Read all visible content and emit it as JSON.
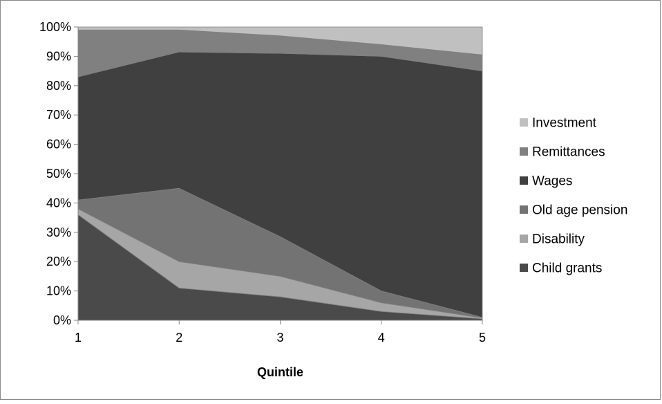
{
  "chart_data": {
    "type": "area",
    "stacked": true,
    "percent_stacked": true,
    "title": "",
    "xlabel": "Quintile",
    "ylabel": "",
    "categories": [
      "1",
      "2",
      "3",
      "4",
      "5"
    ],
    "ylim": [
      0,
      100
    ],
    "y_ticks": [
      "0%",
      "10%",
      "20%",
      "30%",
      "40%",
      "50%",
      "60%",
      "70%",
      "80%",
      "90%",
      "100%"
    ],
    "grid": false,
    "legend_position": "right",
    "series": [
      {
        "name": "Child grants",
        "values": [
          36,
          11,
          8,
          3,
          0.5
        ],
        "color": "#4a4a4a"
      },
      {
        "name": "Disability",
        "values": [
          2,
          9,
          7,
          3,
          0.3
        ],
        "color": "#a6a6a6"
      },
      {
        "name": "Old age pension",
        "values": [
          3,
          25,
          13.5,
          4,
          0.2
        ],
        "color": "#737373"
      },
      {
        "name": "Wages",
        "values": [
          42,
          46.5,
          62.5,
          80,
          84
        ],
        "color": "#404040"
      },
      {
        "name": "Remittances",
        "values": [
          16,
          7.5,
          6,
          4,
          5.5
        ],
        "color": "#808080"
      },
      {
        "name": "Investment",
        "values": [
          1,
          1,
          3,
          6,
          9.5
        ],
        "color": "#c0c0c0"
      }
    ]
  }
}
